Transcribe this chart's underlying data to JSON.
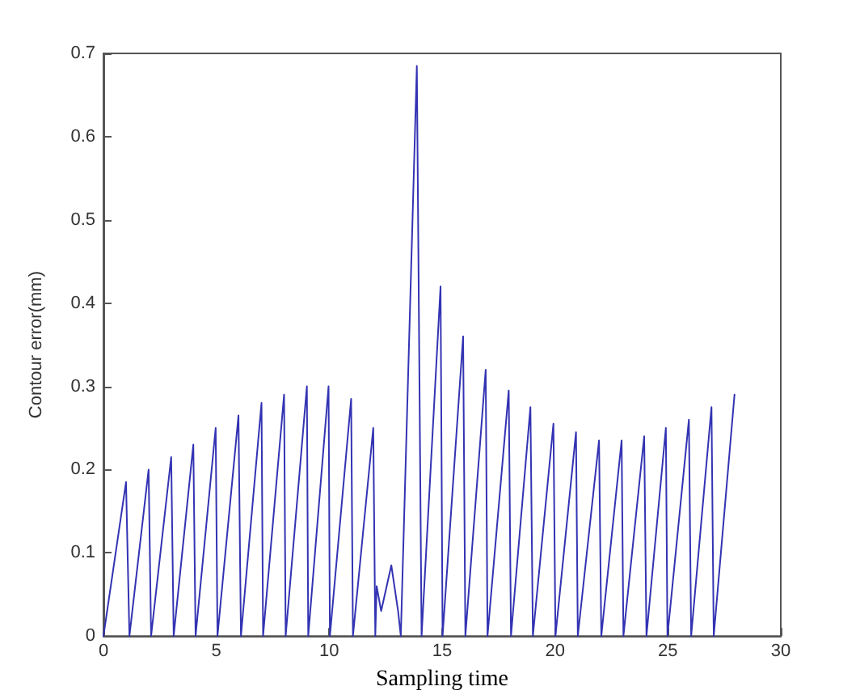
{
  "chart_data": {
    "type": "line",
    "xlabel": "Sampling time",
    "ylabel": "Contour error(mm)",
    "x": [
      0,
      1.0,
      1.15,
      2.0,
      2.11,
      3.0,
      3.11,
      3.98,
      4.08,
      4.97,
      5.05,
      5.98,
      6.09,
      7.0,
      7.07,
      8.0,
      8.07,
      9.01,
      9.07,
      9.97,
      10.03,
      10.97,
      11.05,
      11.95,
      12.04,
      12.1,
      12.3,
      12.75,
      13.05,
      13.17,
      13.88,
      14.09,
      14.93,
      15.02,
      15.93,
      16.03,
      16.93,
      17.01,
      17.95,
      18.05,
      18.91,
      19.02,
      19.93,
      20.02,
      20.93,
      21.01,
      21.95,
      22.05,
      22.95,
      23.03,
      23.95,
      24.05,
      24.91,
      24.98,
      25.93,
      26.03,
      26.93,
      27.03,
      27.95
    ],
    "values": [
      0,
      0.185,
      0,
      0.2,
      0,
      0.215,
      0,
      0.23,
      0,
      0.25,
      0,
      0.265,
      0,
      0.28,
      0,
      0.29,
      0,
      0.3,
      0,
      0.3,
      0,
      0.285,
      0,
      0.25,
      0,
      0.06,
      0.03,
      0.085,
      0.03,
      0,
      0.685,
      0,
      0.42,
      0,
      0.36,
      0,
      0.32,
      0,
      0.295,
      0,
      0.275,
      0,
      0.255,
      0,
      0.245,
      0,
      0.235,
      0,
      0.235,
      0,
      0.24,
      0,
      0.25,
      0,
      0.26,
      0,
      0.275,
      0,
      0.29
    ],
    "color": "#3333b3",
    "line_style": "solid",
    "xlim": [
      0,
      30
    ],
    "xticks": [
      0,
      5,
      10,
      15,
      20,
      25,
      30
    ],
    "ylim": [
      0,
      0.7
    ],
    "yticks": [
      0,
      0.1,
      0.2,
      0.3,
      0.4,
      0.5,
      0.6,
      0.7
    ],
    "grid": false
  }
}
